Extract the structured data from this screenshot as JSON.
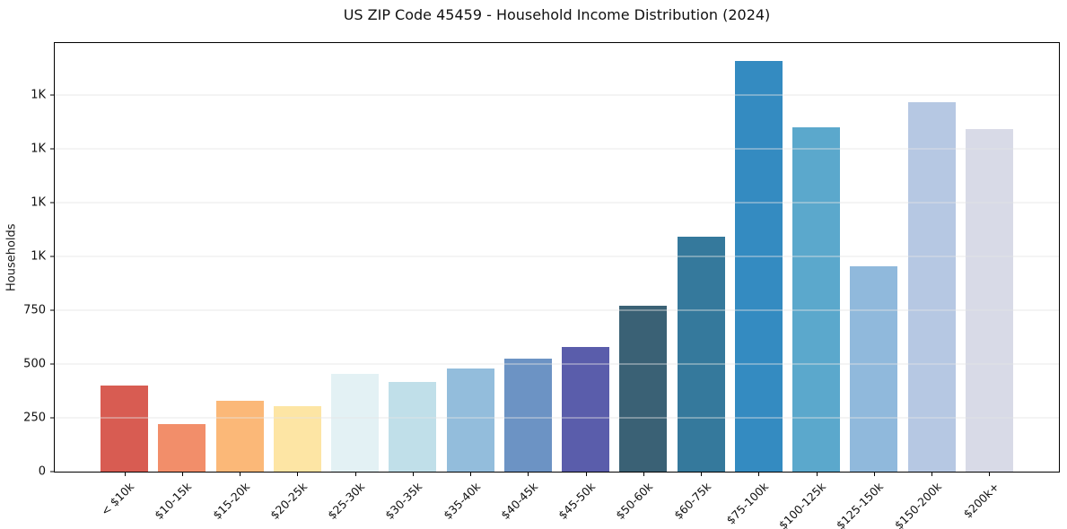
{
  "chart_data": {
    "type": "bar",
    "title": "US ZIP Code 45459 - Household Income Distribution (2024)",
    "xlabel": "",
    "ylabel": "Households",
    "categories": [
      "< $10k",
      "$10-15k",
      "$15-20k",
      "$20-25k",
      "$25-30k",
      "$30-35k",
      "$35-40k",
      "$40-45k",
      "$45-50k",
      "$50-60k",
      "$60-75k",
      "$75-100k",
      "$100-125k",
      "$125-150k",
      "$150-200k",
      "$200k+"
    ],
    "values": [
      400,
      220,
      330,
      305,
      455,
      415,
      480,
      525,
      580,
      770,
      1090,
      1905,
      1600,
      955,
      1715,
      1590
    ],
    "bar_colors": [
      "#d85c52",
      "#f28e6a",
      "#fbb878",
      "#fde5a4",
      "#e3f1f4",
      "#c0dfe9",
      "#93bddc",
      "#6c93c4",
      "#5a5dab",
      "#3a6175",
      "#35799c",
      "#348bc1",
      "#5ba8cc",
      "#90b9dc",
      "#b6c8e3",
      "#d8dae7"
    ],
    "ylim": [
      0,
      1990
    ],
    "yticks": [
      {
        "value": 0,
        "label": "0"
      },
      {
        "value": 250,
        "label": "250"
      },
      {
        "value": 500,
        "label": "500"
      },
      {
        "value": 750,
        "label": "750"
      },
      {
        "value": 1000,
        "label": "1K"
      },
      {
        "value": 1250,
        "label": "1K"
      },
      {
        "value": 1500,
        "label": "1K"
      },
      {
        "value": 1750,
        "label": "1K"
      }
    ],
    "grid": "horizontal",
    "legend": "none"
  },
  "colors": {
    "background": "#ffffff",
    "spine": "#000000",
    "gridline": "#e4e4e4",
    "text": "#111111"
  }
}
